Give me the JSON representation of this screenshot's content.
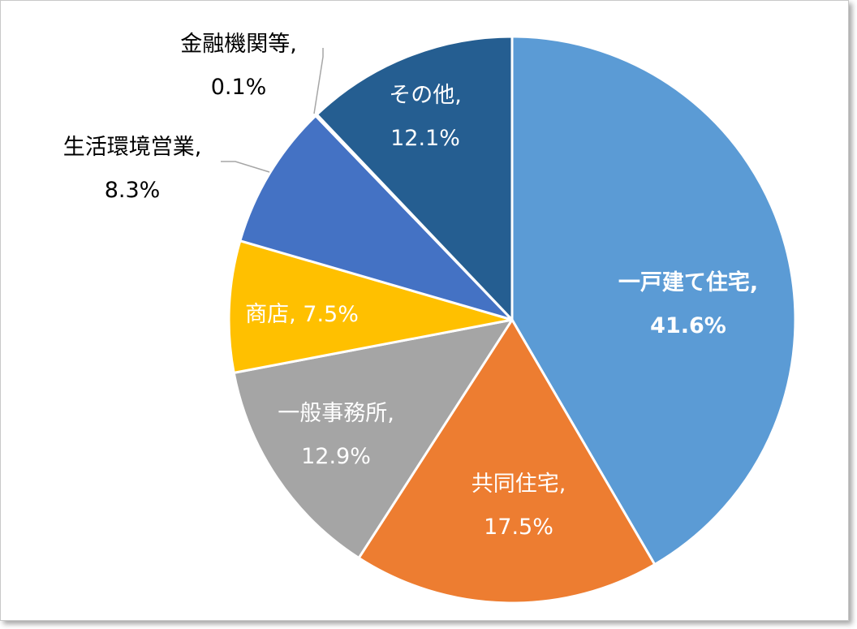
{
  "chart_data": {
    "type": "pie",
    "title": "",
    "slices": [
      {
        "name": "一戸建て住宅",
        "value": 41.6,
        "label_line1": "一戸建て住宅,",
        "label_line2": "41.6%",
        "color": "#5b9bd5",
        "label_color": "#ffffff",
        "bold": true
      },
      {
        "name": "共同住宅",
        "value": 17.5,
        "label_line1": "共同住宅,",
        "label_line2": "17.5%",
        "color": "#ed7d31",
        "label_color": "#ffffff",
        "bold": false
      },
      {
        "name": "一般事務所",
        "value": 12.9,
        "label_line1": "一般事務所,",
        "label_line2": "12.9%",
        "color": "#a5a5a5",
        "label_color": "#ffffff",
        "bold": false
      },
      {
        "name": "商店",
        "value": 7.5,
        "label_line1": "商店, 7.5%",
        "label_line2": "",
        "color": "#ffc000",
        "label_color": "#ffffff",
        "bold": false
      },
      {
        "name": "生活環境営業",
        "value": 8.3,
        "label_line1": "生活環境営業,",
        "label_line2": "8.3%",
        "color": "#4472c4",
        "label_color": "#000000",
        "bold": false
      },
      {
        "name": "金融機関等",
        "value": 0.1,
        "label_line1": "金融機関等,",
        "label_line2": "0.1%",
        "color": "#264478",
        "label_color": "#000000",
        "bold": false
      },
      {
        "name": "その他",
        "value": 12.1,
        "label_line1": "その他,",
        "label_line2": "12.1%",
        "color": "#255e91",
        "label_color": "#ffffff",
        "bold": false
      }
    ]
  }
}
